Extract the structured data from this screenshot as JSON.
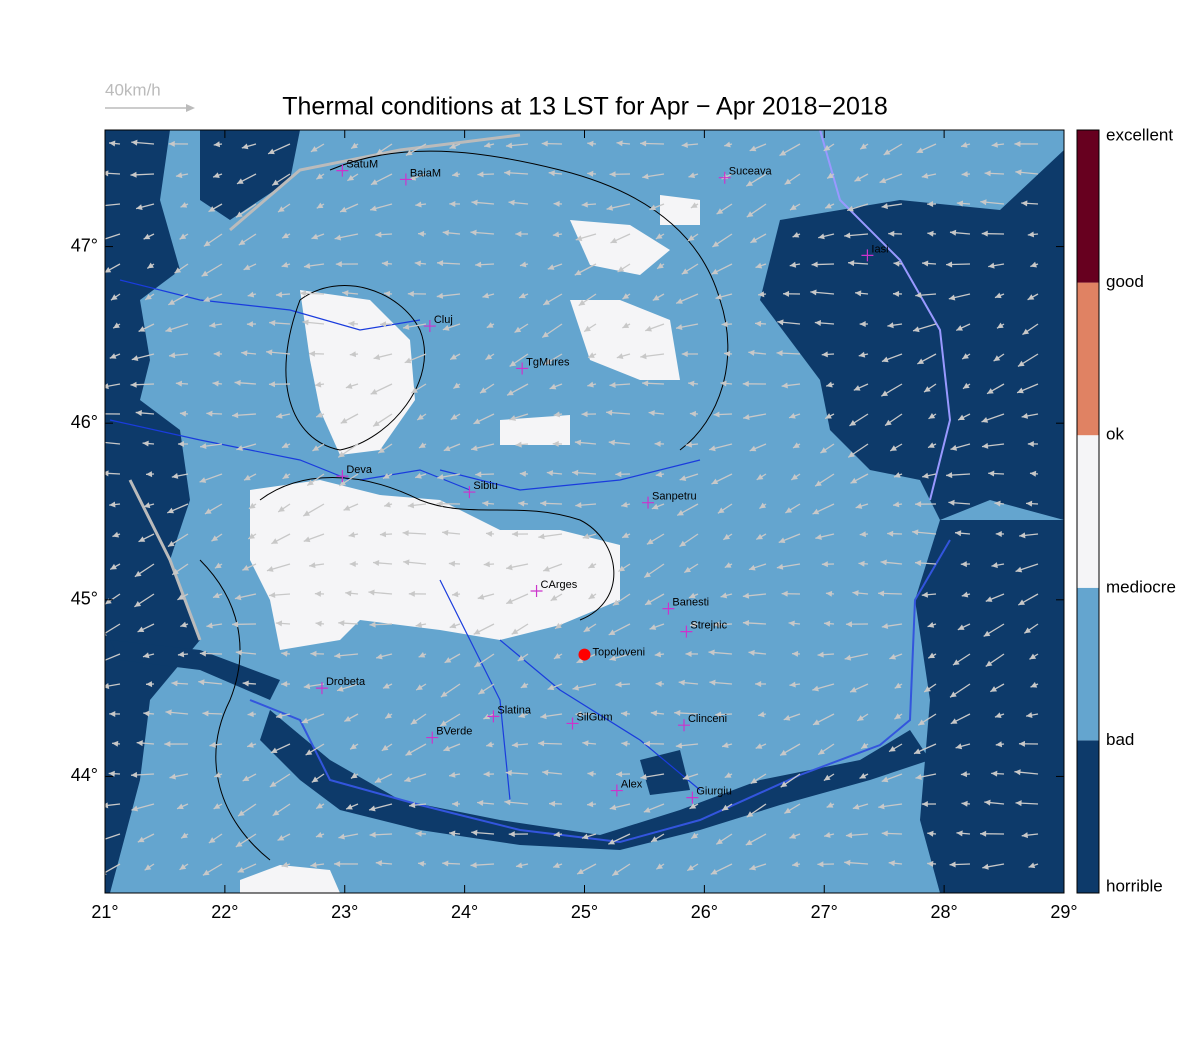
{
  "map": {
    "title": "Thermal conditions at 13 LST for Apr − Apr  2018−2018",
    "scale_label": "40km/h",
    "xlim": [
      21,
      29
    ],
    "ylim": [
      43.34,
      47.66
    ],
    "xticks": [
      {
        "value": 21,
        "label": "21°"
      },
      {
        "value": 22,
        "label": "22°"
      },
      {
        "value": 23,
        "label": "23°"
      },
      {
        "value": 24,
        "label": "24°"
      },
      {
        "value": 25,
        "label": "25°"
      },
      {
        "value": 26,
        "label": "26°"
      },
      {
        "value": 27,
        "label": "27°"
      },
      {
        "value": 28,
        "label": "28°"
      },
      {
        "value": 29,
        "label": "29°"
      }
    ],
    "yticks": [
      {
        "value": 44,
        "label": "44°"
      },
      {
        "value": 45,
        "label": "45°"
      },
      {
        "value": 46,
        "label": "46°"
      },
      {
        "value": 47,
        "label": "47°"
      }
    ],
    "cities": [
      {
        "name": "SatuM",
        "lon": 22.98,
        "lat": 47.43
      },
      {
        "name": "BaiaM",
        "lon": 23.51,
        "lat": 47.38
      },
      {
        "name": "Suceava",
        "lon": 26.17,
        "lat": 47.39
      },
      {
        "name": "Iasi",
        "lon": 27.36,
        "lat": 46.95
      },
      {
        "name": "Cluj",
        "lon": 23.71,
        "lat": 46.55
      },
      {
        "name": "TgMures",
        "lon": 24.48,
        "lat": 46.31
      },
      {
        "name": "Deva",
        "lon": 22.98,
        "lat": 45.7
      },
      {
        "name": "Sibiu",
        "lon": 24.04,
        "lat": 45.61
      },
      {
        "name": "Sanpetru",
        "lon": 25.53,
        "lat": 45.55
      },
      {
        "name": "CArges",
        "lon": 24.6,
        "lat": 45.05
      },
      {
        "name": "Banesti",
        "lon": 25.7,
        "lat": 44.95
      },
      {
        "name": "Strejnic",
        "lon": 25.85,
        "lat": 44.82
      },
      {
        "name": "Drobeta",
        "lon": 22.81,
        "lat": 44.5
      },
      {
        "name": "Slatina",
        "lon": 24.24,
        "lat": 44.34
      },
      {
        "name": "SilGum",
        "lon": 24.9,
        "lat": 44.3
      },
      {
        "name": "BVerde",
        "lon": 23.73,
        "lat": 44.22
      },
      {
        "name": "Clinceni",
        "lon": 25.83,
        "lat": 44.29
      },
      {
        "name": "Alex",
        "lon": 25.27,
        "lat": 43.92
      },
      {
        "name": "Giurgiu",
        "lon": 25.9,
        "lat": 43.88
      }
    ],
    "site": {
      "name": "Topoloveni",
      "lon": 25.0,
      "lat": 44.69,
      "color": "#ff0000"
    },
    "colorbar": {
      "labels": [
        "horrible",
        "bad",
        "mediocre",
        "ok",
        "good",
        "excellent"
      ],
      "colors": [
        "#0d3a6a",
        "#64a5cf",
        "#f5f5f7",
        "#e08263",
        "#67001f"
      ]
    }
  }
}
